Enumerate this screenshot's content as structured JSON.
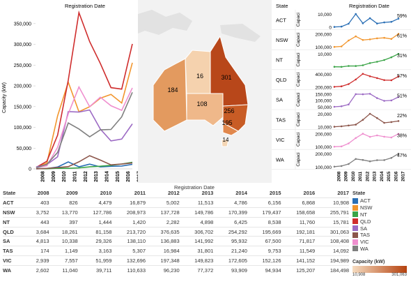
{
  "left_chart": {
    "title": "Registration Date",
    "ylabel": "Capacity (kW)",
    "yticks": [
      "0",
      "50,000",
      "100,000",
      "150,000",
      "200,000",
      "250,000",
      "300,000",
      "350,000"
    ]
  },
  "map_values": [
    {
      "state": "WA",
      "value": "184"
    },
    {
      "state": "NT",
      "value": "16"
    },
    {
      "state": "QLD",
      "value": "301"
    },
    {
      "state": "SA",
      "value": "108"
    },
    {
      "state": "NSW",
      "value": "256"
    },
    {
      "state": "VIC",
      "value": "195"
    },
    {
      "state": "TAS",
      "value": "14"
    }
  ],
  "panel": {
    "state_header": "State",
    "title": "Registration Date",
    "ylabel_short": "Capaci",
    "rows": [
      {
        "state": "ACT",
        "pct": "59%",
        "ticks": [
          "10,000",
          "0"
        ]
      },
      {
        "state": "NSW",
        "pct": "61%",
        "ticks": [
          "200,000",
          "100,000"
        ]
      },
      {
        "state": "NT",
        "pct": "31%",
        "ticks": [
          "10,000"
        ]
      },
      {
        "state": "QLD",
        "pct": "57%",
        "ticks": [
          "400,000",
          "200,000"
        ]
      },
      {
        "state": "SA",
        "pct": "51%",
        "ticks": [
          "150,000",
          "100,000",
          "50,000"
        ]
      },
      {
        "state": "TAS",
        "pct": "22%",
        "ticks": [
          "20,000",
          "10,000"
        ]
      },
      {
        "state": "VIC",
        "pct": "38%",
        "ticks": [
          "200,000",
          "100,000"
        ]
      },
      {
        "state": "WA",
        "pct": "47%",
        "ticks": [
          "200,000",
          "100,000"
        ]
      }
    ]
  },
  "table": {
    "title": "Registration Date",
    "headers": [
      "State",
      "2008",
      "2009",
      "2010",
      "2011",
      "2012",
      "2013",
      "2014",
      "2015",
      "2016",
      "2017"
    ],
    "rows": [
      [
        "ACT",
        "403",
        "826",
        "4,479",
        "16,879",
        "5,002",
        "11,513",
        "4,786",
        "6,156",
        "6,868",
        "10,908"
      ],
      [
        "NSW",
        "3,752",
        "13,770",
        "127,786",
        "208,973",
        "137,728",
        "149,786",
        "170,399",
        "179,437",
        "158,658",
        "255,791"
      ],
      [
        "NT",
        "443",
        "397",
        "1,444",
        "1,420",
        "2,282",
        "4,898",
        "6,425",
        "8,538",
        "11,760",
        "15,781"
      ],
      [
        "QLD",
        "3,684",
        "18,261",
        "81,158",
        "213,720",
        "376,635",
        "306,702",
        "254,292",
        "195,669",
        "192,181",
        "301,063"
      ],
      [
        "SA",
        "4,813",
        "10,338",
        "29,326",
        "138,110",
        "136,883",
        "141,992",
        "95,932",
        "67,500",
        "71,817",
        "108,408"
      ],
      [
        "TAS",
        "174",
        "1,149",
        "3,163",
        "5,307",
        "16,984",
        "31,801",
        "21,240",
        "9,753",
        "11,549",
        "14,092"
      ],
      [
        "VIC",
        "2,939",
        "7,557",
        "51,959",
        "132,696",
        "197,348",
        "149,823",
        "172,605",
        "152,126",
        "141,152",
        "194,989"
      ],
      [
        "WA",
        "2,602",
        "11,040",
        "39,711",
        "110,633",
        "96,230",
        "77,372",
        "93,909",
        "94,934",
        "125,207",
        "184,498"
      ]
    ]
  },
  "legend": {
    "title": "State",
    "items": [
      {
        "state": "ACT",
        "color": "#2a6fb5"
      },
      {
        "state": "NSW",
        "color": "#f2962d"
      },
      {
        "state": "NT",
        "color": "#3aa447"
      },
      {
        "state": "QLD",
        "color": "#cf2d2d"
      },
      {
        "state": "SA",
        "color": "#9c6ac4"
      },
      {
        "state": "TAS",
        "color": "#8c564b"
      },
      {
        "state": "VIC",
        "color": "#ef8fcf"
      },
      {
        "state": "WA",
        "color": "#7f7f7f"
      }
    ],
    "capacity_title": "Capacity (kW)",
    "capacity_min": "10,908",
    "capacity_max": "301,063"
  },
  "chart_data": {
    "type": "line",
    "title": "Registration Date",
    "ylabel": "Capacity (kW)",
    "x": [
      2008,
      2009,
      2010,
      2011,
      2012,
      2013,
      2014,
      2015,
      2016,
      2017
    ],
    "ylim": [
      0,
      380000
    ],
    "series": [
      {
        "name": "ACT",
        "values": [
          403,
          826,
          4479,
          16879,
          5002,
          11513,
          4786,
          6156,
          6868,
          10908
        ]
      },
      {
        "name": "NSW",
        "values": [
          3752,
          13770,
          127786,
          208973,
          137728,
          149786,
          170399,
          179437,
          158658,
          255791
        ]
      },
      {
        "name": "NT",
        "values": [
          443,
          397,
          1444,
          1420,
          2282,
          4898,
          6425,
          8538,
          11760,
          15781
        ]
      },
      {
        "name": "QLD",
        "values": [
          3684,
          18261,
          81158,
          213720,
          376635,
          306702,
          254292,
          195669,
          192181,
          301063
        ]
      },
      {
        "name": "SA",
        "values": [
          4813,
          10338,
          29326,
          138110,
          136883,
          141992,
          95932,
          67500,
          71817,
          108408
        ]
      },
      {
        "name": "TAS",
        "values": [
          174,
          1149,
          3163,
          5307,
          16984,
          31801,
          21240,
          9753,
          11549,
          14092
        ]
      },
      {
        "name": "VIC",
        "values": [
          2939,
          7557,
          51959,
          132696,
          197348,
          149823,
          172605,
          152126,
          141152,
          194989
        ]
      },
      {
        "name": "WA",
        "values": [
          2602,
          11040,
          39711,
          110633,
          96230,
          77372,
          93909,
          94934,
          125207,
          184498
        ]
      }
    ]
  }
}
